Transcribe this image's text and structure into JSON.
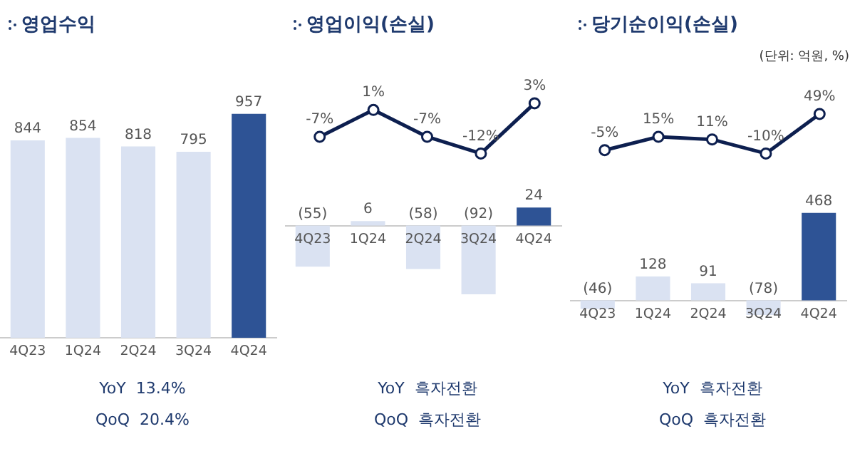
{
  "chart_data": [
    {
      "type": "bar",
      "title": "영업수익",
      "categories": [
        "4Q23",
        "1Q24",
        "2Q24",
        "3Q24",
        "4Q24"
      ],
      "series": [
        {
          "colors": [
            "#dae2f2",
            "#dae2f2",
            "#dae2f2",
            "#dae2f2",
            "#2e5395"
          ],
          "values": [
            844,
            854,
            818,
            795,
            957
          ],
          "value_labels": [
            "844",
            "854",
            "818",
            "795",
            "957"
          ]
        }
      ],
      "tick_labels": "x",
      "grid": false,
      "legend": false,
      "annotations": [
        "YoY  13.4%",
        "QoQ  20.4%"
      ]
    },
    {
      "type": "line",
      "title": "영업이익(손실)",
      "categories": [
        null,
        null,
        null,
        null,
        null
      ],
      "series": [
        {
          "color": "#0d1f4f",
          "values": [
            -7,
            1,
            -7,
            -12,
            3
          ],
          "value_labels": [
            "-7%",
            "1%",
            "-7%",
            "-12%",
            "3%"
          ]
        }
      ],
      "tick_labels": false,
      "grid": false,
      "legend": false,
      "marker": "circle"
    },
    {
      "type": "bar",
      "categories": [
        "4Q23",
        "1Q24",
        "2Q24",
        "3Q24",
        "4Q24"
      ],
      "series": [
        {
          "colors": [
            "#dae2f2",
            "#dae2f2",
            "#dae2f2",
            "#dae2f2",
            "#2e5395"
          ],
          "values": [
            -55,
            6,
            -58,
            -92,
            24
          ],
          "value_labels": [
            "(55)",
            "6",
            "(58)",
            "(92)",
            "24"
          ]
        }
      ],
      "tick_labels": "x",
      "grid": false,
      "legend": false,
      "annotations": [
        "YoY  흑자전환",
        "QoQ  흑자전환"
      ]
    },
    {
      "type": "line",
      "title": "당기순이익(손실)",
      "categories": [
        null,
        null,
        null,
        null,
        null
      ],
      "series": [
        {
          "color": "#0d1f4f",
          "values": [
            -5,
            15,
            11,
            -10,
            49
          ],
          "value_labels": [
            "-5%",
            "15%",
            "11%",
            "-10%",
            "49%"
          ]
        }
      ],
      "tick_labels": false,
      "grid": false,
      "legend": false,
      "marker": "circle",
      "annotations": [
        "(단위: 억원, %)"
      ]
    },
    {
      "type": "bar",
      "categories": [
        "4Q23",
        "1Q24",
        "2Q24",
        "3Q24",
        "4Q24"
      ],
      "series": [
        {
          "colors": [
            "#dae2f2",
            "#dae2f2",
            "#dae2f2",
            "#dae2f2",
            "#2e5395"
          ],
          "values": [
            -46,
            128,
            91,
            -78,
            468
          ],
          "value_labels": [
            "(46)",
            "128",
            "91",
            "(78)",
            "468"
          ]
        }
      ],
      "tick_labels": "x",
      "grid": false,
      "legend": false,
      "annotations": [
        "YoY  흑자전환",
        "QoQ  흑자전환"
      ]
    }
  ]
}
